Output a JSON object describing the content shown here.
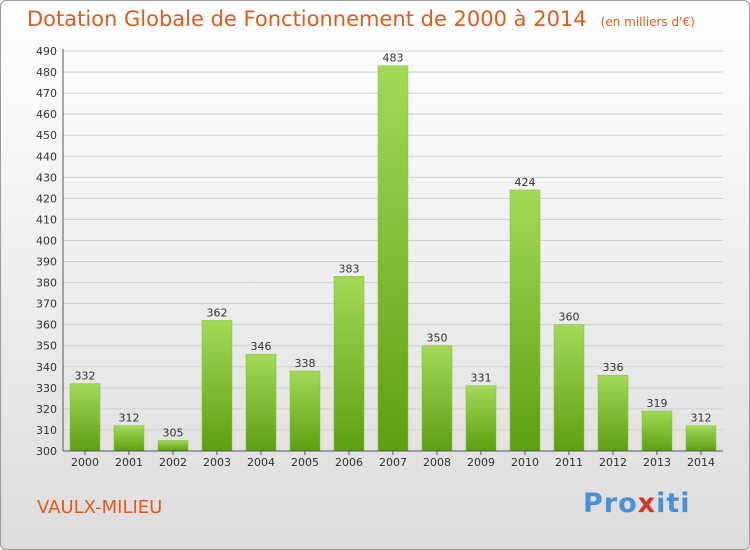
{
  "header": {
    "title": "Dotation Globale de Fonctionnement de 2000 à 2014",
    "unit": "(en milliers d'€)"
  },
  "footer": {
    "commune": "VAULX-MILIEU",
    "logo": [
      "Pro",
      "x",
      "iti"
    ]
  },
  "colors": {
    "title": "#e05a1e",
    "bar_light": "#9dd24f",
    "bar_dark": "#62a516"
  },
  "chart_data": {
    "type": "bar",
    "categories": [
      "2000",
      "2001",
      "2002",
      "2003",
      "2004",
      "2005",
      "2006",
      "2007",
      "2008",
      "2009",
      "2010",
      "2011",
      "2012",
      "2013",
      "2014"
    ],
    "values": [
      332,
      312,
      305,
      362,
      346,
      338,
      383,
      483,
      350,
      331,
      424,
      360,
      336,
      319,
      312
    ],
    "ylim": [
      300,
      490
    ],
    "ytick_step": 10,
    "grid": "horizontal",
    "data_labels": true
  }
}
